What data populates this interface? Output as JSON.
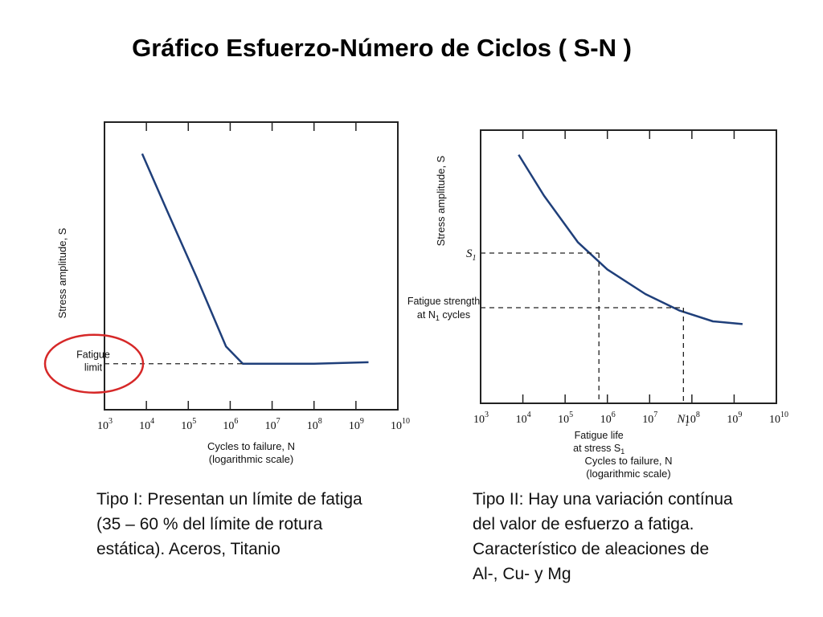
{
  "title": "Gráfico Esfuerzo-Número de Ciclos ( S-N )",
  "colors": {
    "curve": "#1f3f7a",
    "highlight": "#d62828",
    "axis": "#222222"
  },
  "chart_data": [
    {
      "type": "line",
      "ylabel": "Stress amplitude, S",
      "xlabel": [
        "Cycles to failure, N",
        "(logarithmic scale)"
      ],
      "x_scale": "log",
      "xlim": [
        3,
        10
      ],
      "xticks": [
        {
          "base": "10",
          "exp": "3"
        },
        {
          "base": "10",
          "exp": "4"
        },
        {
          "base": "10",
          "exp": "5"
        },
        {
          "base": "10",
          "exp": "6"
        },
        {
          "base": "10",
          "exp": "7"
        },
        {
          "base": "10",
          "exp": "8"
        },
        {
          "base": "10",
          "exp": "9"
        },
        {
          "base": "10",
          "exp": "10"
        }
      ],
      "ylim": [
        0,
        1
      ],
      "series": [
        {
          "x": [
            3.9,
            4.5,
            5.2,
            5.9,
            6.3,
            7.0,
            8.0,
            9.3
          ],
          "y": [
            0.89,
            0.69,
            0.46,
            0.22,
            0.16,
            0.16,
            0.16,
            0.165
          ]
        }
      ],
      "annotations": {
        "fatigue_limit": [
          "Fatigue",
          "limit"
        ],
        "fatigue_limit_y": 0.16
      },
      "grid": false
    },
    {
      "type": "line",
      "ylabel": "Stress amplitude, S",
      "xlabel": [
        "Cycles to failure, N",
        "(logarithmic scale)"
      ],
      "x_scale": "log",
      "xlim": [
        3,
        10
      ],
      "xticks": [
        {
          "base": "10",
          "exp": "3"
        },
        {
          "base": "10",
          "exp": "4"
        },
        {
          "base": "10",
          "exp": "5"
        },
        {
          "base": "10",
          "exp": "6"
        },
        {
          "base": "10",
          "exp": "7"
        },
        {
          "base": "10",
          "exp": "8"
        },
        {
          "base": "10",
          "exp": "9"
        },
        {
          "base": "10",
          "exp": "10"
        }
      ],
      "ylim": [
        0,
        1
      ],
      "series": [
        {
          "x": [
            3.9,
            4.5,
            5.3,
            6.0,
            6.9,
            7.7,
            8.5,
            9.2
          ],
          "y": [
            0.91,
            0.76,
            0.59,
            0.49,
            0.4,
            0.34,
            0.3,
            0.29
          ]
        }
      ],
      "annotations": {
        "s1_label": "S",
        "s1_sub": "1",
        "s1_y": 0.55,
        "fatigue_strength": [
          "Fatigue strength",
          "at N",
          "1",
          " cycles"
        ],
        "fatigue_strength_y": 0.35,
        "fatigue_life": [
          "Fatigue life",
          "at stress S",
          "1"
        ],
        "fatigue_life_x": 5.8,
        "n1_label": "N",
        "n1_sub": "1",
        "n1_x": 7.8
      },
      "grid": false
    }
  ],
  "captions": {
    "left": [
      "Tipo I: Presentan un límite de fatiga",
      "(35 – 60 % del límite de rotura",
      "estática). Aceros, Titanio"
    ],
    "right": [
      "Tipo II: Hay una variación contínua",
      "del valor de esfuerzo a fatiga.",
      "Característico de  aleaciones de",
      "Al-, Cu- y Mg"
    ]
  }
}
